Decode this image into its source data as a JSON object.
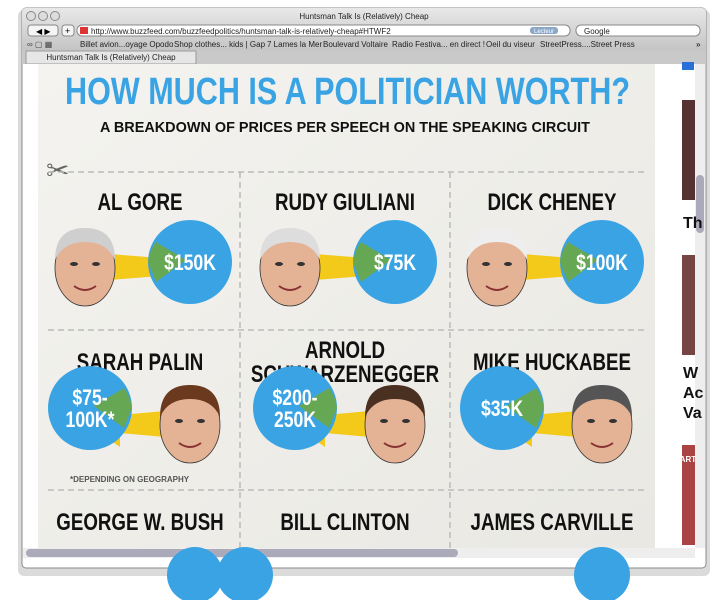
{
  "window": {
    "title": "Huntsman Talk Is (Relatively) Cheap"
  },
  "toolbar": {
    "url": "http://www.buzzfeed.com/buzzfeedpolitics/huntsman-talk-is-relatively-cheap#HTWF2",
    "reader": "Lecteur",
    "search_placeholder": "Google"
  },
  "bookmarks": [
    "Billet avion...oyage Opodo",
    "Shop clothes... kids | Gap",
    "7 Lames la Mer",
    "Boulevard Voltaire",
    "Radio Festiva... en direct !",
    "Oeil du viseur",
    "StreetPress....Street Press"
  ],
  "tab": "Huntsman Talk Is (Relatively) Cheap",
  "infographic": {
    "title": "HOW MUCH IS A POLITICIAN WORTH?",
    "subtitle": "A BREAKDOWN OF PRICES PER SPEECH ON THE SPEAKING CIRCUIT",
    "cells": [
      {
        "name_lines": [
          "AL GORE"
        ],
        "price_lines": [
          "$150K"
        ]
      },
      {
        "name_lines": [
          "RUDY GIULIANI"
        ],
        "price_lines": [
          "$75K"
        ]
      },
      {
        "name_lines": [
          "DICK CHENEY"
        ],
        "price_lines": [
          "$100K"
        ]
      },
      {
        "name_lines": [
          "SARAH PALIN"
        ],
        "price_lines": [
          "$75-",
          "100K*"
        ]
      },
      {
        "name_lines": [
          "ARNOLD",
          "SCHWARZENEGGER"
        ],
        "price_lines": [
          "$200-",
          "250K"
        ]
      },
      {
        "name_lines": [
          "MIKE HUCKABEE"
        ],
        "price_lines": [
          "$35K"
        ]
      },
      {
        "name_lines": [
          "GEORGE W. BUSH"
        ]
      },
      {
        "name_lines": [
          "BILL CLINTON"
        ]
      },
      {
        "name_lines": [
          "JAMES CARVILLE"
        ]
      }
    ],
    "footnote": "*DEPENDING ON GEOGRAPHY"
  },
  "sidebar": [
    "Th",
    "W",
    "Ac",
    "Va",
    "PART"
  ]
}
